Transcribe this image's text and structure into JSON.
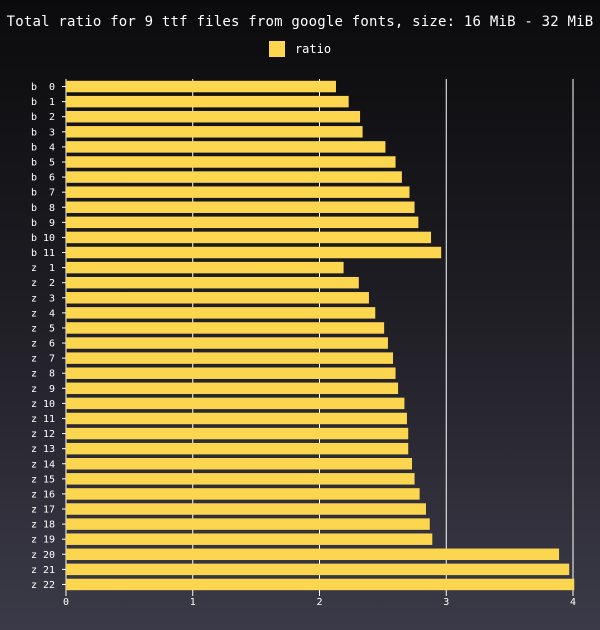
{
  "chart_data": {
    "type": "bar",
    "orientation": "horizontal",
    "title": "Total ratio for 9 ttf files from google fonts, size: 16 MiB - 32 MiB",
    "xlabel": "",
    "ylabel": "",
    "xlim": [
      0,
      4
    ],
    "x_ticks": [
      "0",
      "1",
      "2",
      "3",
      "4"
    ],
    "grid": "vertical",
    "legend_position": "top-center",
    "categories": [
      "b  0",
      "b  1",
      "b  2",
      "b  3",
      "b  4",
      "b  5",
      "b  6",
      "b  7",
      "b  8",
      "b  9",
      "b 10",
      "b 11",
      "z  1",
      "z  2",
      "z  3",
      "z  4",
      "z  5",
      "z  6",
      "z  7",
      "z  8",
      "z  9",
      "z 10",
      "z 11",
      "z 12",
      "z 13",
      "z 14",
      "z 15",
      "z 16",
      "z 17",
      "z 18",
      "z 19",
      "z 20",
      "z 21",
      "z 22"
    ],
    "series": [
      {
        "name": "ratio",
        "color": "#fdd64f",
        "values": [
          2.13,
          2.23,
          2.32,
          2.34,
          2.52,
          2.6,
          2.65,
          2.71,
          2.75,
          2.78,
          2.88,
          2.96,
          2.19,
          2.31,
          2.39,
          2.44,
          2.51,
          2.54,
          2.58,
          2.6,
          2.62,
          2.67,
          2.69,
          2.7,
          2.7,
          2.73,
          2.75,
          2.79,
          2.84,
          2.87,
          2.89,
          3.89,
          3.97,
          4.01
        ]
      }
    ]
  }
}
